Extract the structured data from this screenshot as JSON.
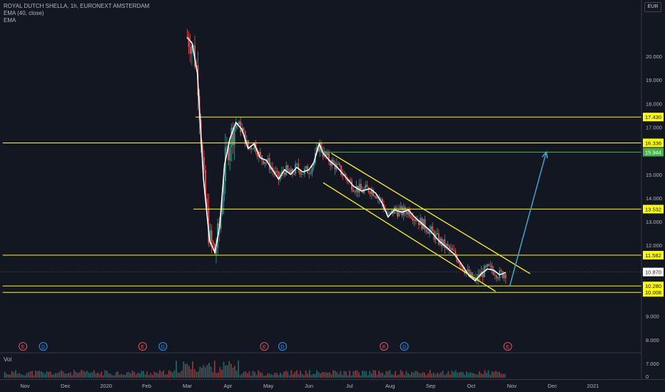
{
  "legend": {
    "symbol": "ROYAL DUTCH SHELLA, 1h, EURONEXT AMSTERDAM",
    "ema_line": "EMA (40, close)",
    "ema_label": "EMA"
  },
  "volume_label": "Vol",
  "currency": "EUR",
  "colors": {
    "background": "#131722",
    "axis_text": "#b2b5be",
    "grid_border": "#363a45",
    "level_line": "#ffff00",
    "target_line": "#4caf50",
    "arrow": "#42a5c8",
    "candle_up": "#26a69a",
    "candle_down": "#ef5350",
    "ema": "#ffffff",
    "earnings": "#e0555a",
    "dividend": "#2196f3"
  },
  "chart_data": {
    "type": "candlestick",
    "title": "ROYAL DUTCH SHELLA, 1h, EURONEXT AMSTERDAM",
    "currency": "EUR",
    "indicator": "EMA (40, close)",
    "y_range": [
      6.5,
      21.3
    ],
    "y_ticks": [
      7.0,
      8.0,
      9.0,
      10.0,
      11.0,
      12.0,
      13.0,
      14.0,
      15.0,
      16.0,
      17.0,
      18.0,
      19.0,
      20.0
    ],
    "y_tick_labels": [
      "7.000",
      "8.000",
      "9.000",
      "10.000",
      "11.000",
      "12.000",
      "13.000",
      "14.000",
      "15.000",
      "16.000",
      "17.000",
      "18.000",
      "19.000",
      "20.000"
    ],
    "volume_axis_label": "0",
    "x_months": [
      {
        "label": "Nov",
        "t": 0.0
      },
      {
        "label": "Dec",
        "t": 1.0
      },
      {
        "label": "2020",
        "t": 2.0
      },
      {
        "label": "Feb",
        "t": 3.0
      },
      {
        "label": "Mar",
        "t": 4.0
      },
      {
        "label": "Apr",
        "t": 5.0
      },
      {
        "label": "May",
        "t": 6.0
      },
      {
        "label": "Jun",
        "t": 7.0
      },
      {
        "label": "Jul",
        "t": 8.0
      },
      {
        "label": "Aug",
        "t": 9.0
      },
      {
        "label": "Sep",
        "t": 10.0
      },
      {
        "label": "Oct",
        "t": 11.0
      },
      {
        "label": "Nov",
        "t": 12.0
      },
      {
        "label": "Dec",
        "t": 13.0
      },
      {
        "label": "2021",
        "t": 14.0
      }
    ],
    "horizontal_levels": [
      {
        "value": 17.43,
        "label": "17.430",
        "from_t": 4.2
      },
      {
        "value": 16.336,
        "label": "16.336",
        "from_t": -0.55
      },
      {
        "value": 13.532,
        "label": "13.532",
        "from_t": 4.15
      },
      {
        "value": 11.582,
        "label": "11.582",
        "from_t": -0.55
      },
      {
        "value": 10.28,
        "label": "10.280",
        "from_t": -0.55
      },
      {
        "value": 10.008,
        "label": "10.008",
        "from_t": -0.55
      }
    ],
    "target_level": {
      "value": 15.944,
      "label": "15.944",
      "from_t": 7.3
    },
    "last_price": {
      "value": 10.87,
      "label": "10.870"
    },
    "trend_channel": {
      "upper": [
        [
          7.55,
          15.9
        ],
        [
          12.45,
          10.8
        ]
      ],
      "lower": [
        [
          7.35,
          14.65
        ],
        [
          11.6,
          10.05
        ]
      ]
    },
    "target_arrow": {
      "from": [
        11.95,
        10.28
      ],
      "to": [
        12.85,
        15.944
      ]
    },
    "ema_path": [
      [
        4.0,
        20.8
      ],
      [
        4.12,
        20.55
      ],
      [
        4.25,
        19.3
      ],
      [
        4.4,
        14.8
      ],
      [
        4.55,
        12.2
      ],
      [
        4.68,
        11.7
      ],
      [
        4.8,
        12.8
      ],
      [
        4.92,
        15.4
      ],
      [
        5.05,
        16.5
      ],
      [
        5.2,
        17.2
      ],
      [
        5.35,
        16.9
      ],
      [
        5.5,
        16.1
      ],
      [
        5.65,
        16.3
      ],
      [
        5.8,
        15.7
      ],
      [
        5.95,
        15.6
      ],
      [
        6.1,
        15.2
      ],
      [
        6.25,
        14.8
      ],
      [
        6.4,
        15.2
      ],
      [
        6.55,
        15.0
      ],
      [
        6.7,
        15.3
      ],
      [
        6.85,
        15.1
      ],
      [
        7.0,
        15.2
      ],
      [
        7.12,
        15.5
      ],
      [
        7.25,
        16.3
      ],
      [
        7.35,
        15.9
      ],
      [
        7.5,
        15.6
      ],
      [
        7.7,
        15.3
      ],
      [
        7.9,
        14.9
      ],
      [
        8.1,
        14.5
      ],
      [
        8.3,
        14.3
      ],
      [
        8.5,
        14.4
      ],
      [
        8.65,
        14.2
      ],
      [
        8.8,
        13.8
      ],
      [
        8.95,
        13.2
      ],
      [
        9.1,
        13.5
      ],
      [
        9.3,
        13.4
      ],
      [
        9.45,
        13.5
      ],
      [
        9.6,
        13.2
      ],
      [
        9.8,
        12.9
      ],
      [
        10.0,
        12.6
      ],
      [
        10.2,
        12.2
      ],
      [
        10.4,
        11.9
      ],
      [
        10.6,
        11.6
      ],
      [
        10.8,
        11.1
      ],
      [
        10.95,
        10.7
      ],
      [
        11.1,
        10.5
      ],
      [
        11.25,
        10.8
      ],
      [
        11.4,
        11.0
      ],
      [
        11.55,
        10.95
      ],
      [
        11.7,
        10.75
      ],
      [
        11.85,
        10.85
      ]
    ],
    "earnings_markers_t": [
      -0.05,
      2.9,
      5.9,
      8.85,
      11.9
    ],
    "dividend_markers_t": [
      0.45,
      3.4,
      6.35,
      9.35
    ]
  }
}
